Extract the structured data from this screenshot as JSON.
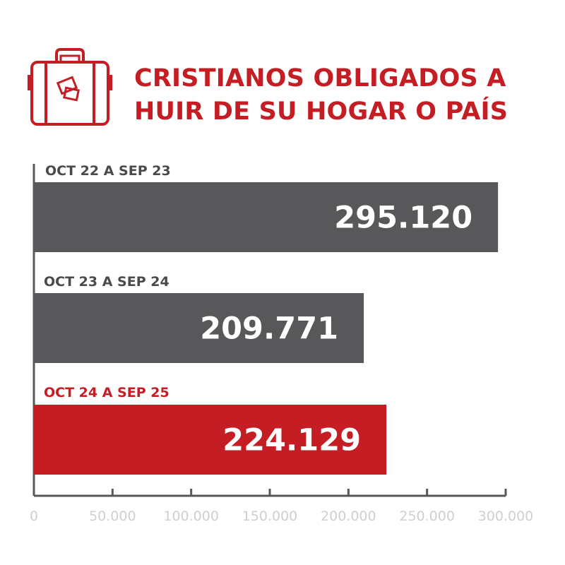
{
  "colors": {
    "accent": "#c41e24",
    "bar_gray": "#58575a",
    "label_gray": "#4a494c",
    "axis": "#58575a",
    "tick_text": "#cfcfcf"
  },
  "header": {
    "icon": "suitcase-icon",
    "title_line1": "CRISTIANOS OBLIGADOS A",
    "title_line2": "HUIR DE SU HOGAR O PAÍS"
  },
  "chart_data": {
    "type": "bar",
    "orientation": "horizontal",
    "categories": [
      "OCT 22 A SEP 23",
      "OCT 23 A SEP 24",
      "OCT 24 A SEP 25"
    ],
    "values": [
      295120,
      209771,
      224129
    ],
    "value_labels": [
      "295.120",
      "209.771",
      "224.129"
    ],
    "bar_colors": [
      "#58575a",
      "#58575a",
      "#c41e24"
    ],
    "label_colors": [
      "#4a494c",
      "#4a494c",
      "#c41e24"
    ],
    "xlim": [
      0,
      300000
    ],
    "xticks": [
      0,
      50000,
      100000,
      150000,
      200000,
      250000,
      300000
    ],
    "xtick_labels": [
      "0",
      "50.000",
      "100.000",
      "150.000",
      "200.000",
      "250.000",
      "300.000"
    ],
    "grid": false,
    "legend": "none"
  }
}
